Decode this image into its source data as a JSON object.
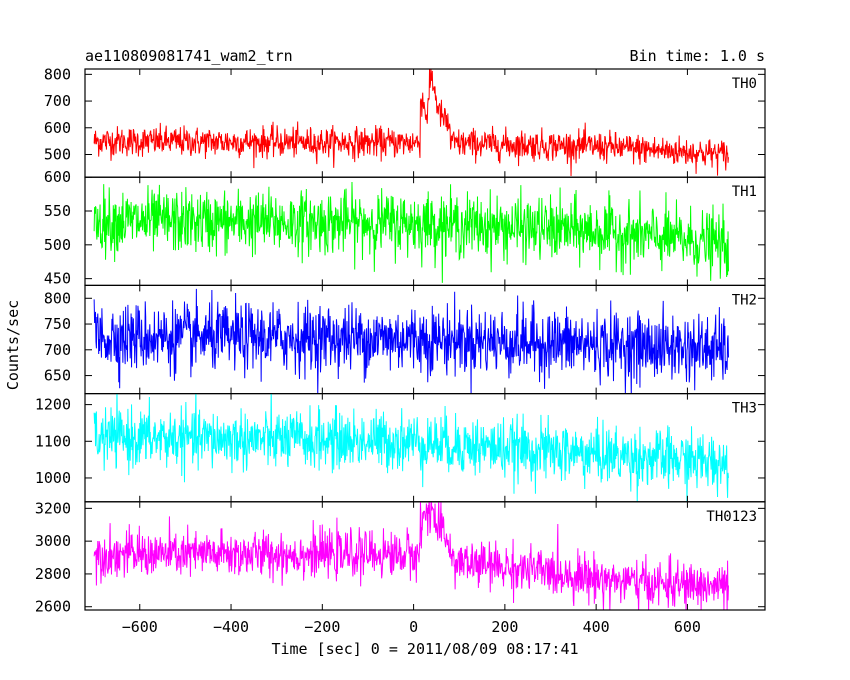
{
  "chart_data": {
    "type": "line",
    "title": "ae110809081741_wam2_trn",
    "subtitle": "Bin time: 1.0 s",
    "xlabel": "Time [sec] 0 = 2011/08/09 08:17:41",
    "ylabel": "Counts/sec",
    "xlim": [
      -720,
      770
    ],
    "x_ticks": [
      -600,
      -400,
      -200,
      0,
      200,
      400,
      600
    ],
    "x_tick_labels": [
      "−600",
      "−400",
      "−200",
      "0",
      "200",
      "400",
      "600"
    ],
    "x_range": [
      -700,
      690
    ],
    "bin_time_s": 1.0,
    "grid": false,
    "panels": [
      {
        "name": "TH0",
        "color": "#ff0000",
        "ylim": [
          415,
          820
        ],
        "y_ticks": [
          500,
          600,
          700,
          800
        ],
        "y_tick_labels": [
          "500",
          "600",
          "700",
          "800"
        ],
        "trend": [
          [
            -700,
            550
          ],
          [
            -200,
            545
          ],
          [
            0,
            545
          ],
          [
            400,
            530
          ],
          [
            690,
            500
          ]
        ],
        "noise_sd": 28,
        "burst": [
          [
            20,
            700
          ],
          [
            30,
            640
          ],
          [
            38,
            800
          ],
          [
            45,
            750
          ],
          [
            55,
            660
          ],
          [
            80,
            600
          ]
        ]
      },
      {
        "name": "TH1",
        "color": "#00ff00",
        "ylim": [
          440,
          600
        ],
        "y_ticks": [
          450,
          500,
          550,
          600
        ],
        "y_tick_labels": [
          "450",
          "500",
          "550",
          "600"
        ],
        "trend": [
          [
            -700,
            535
          ],
          [
            0,
            532
          ],
          [
            400,
            520
          ],
          [
            690,
            500
          ]
        ],
        "noise_sd": 23,
        "burst": []
      },
      {
        "name": "TH2",
        "color": "#0000ff",
        "ylim": [
          615,
          825
        ],
        "y_ticks": [
          650,
          700,
          750,
          800
        ],
        "y_tick_labels": [
          "650",
          "700",
          "750",
          "800"
        ],
        "trend": [
          [
            -700,
            725
          ],
          [
            0,
            722
          ],
          [
            400,
            710
          ],
          [
            690,
            700
          ]
        ],
        "noise_sd": 33,
        "burst": []
      },
      {
        "name": "TH3",
        "color": "#00ffff",
        "ylim": [
          935,
          1230
        ],
        "y_ticks": [
          1000,
          1100,
          1200
        ],
        "y_tick_labels": [
          "1000",
          "1100",
          "1200"
        ],
        "trend": [
          [
            -700,
            1110
          ],
          [
            0,
            1100
          ],
          [
            200,
            1080
          ],
          [
            690,
            1040
          ]
        ],
        "noise_sd": 40,
        "burst": []
      },
      {
        "name": "TH0123",
        "color": "#ff00ff",
        "ylim": [
          2580,
          3240
        ],
        "y_ticks": [
          2600,
          2800,
          3000,
          3200
        ],
        "y_tick_labels": [
          "2600",
          "2800",
          "3000",
          "3200"
        ],
        "trend": [
          [
            -700,
            2920
          ],
          [
            -100,
            2920
          ],
          [
            0,
            2920
          ],
          [
            100,
            2870
          ],
          [
            300,
            2810
          ],
          [
            500,
            2740
          ],
          [
            690,
            2720
          ]
        ],
        "noise_sd": 70,
        "burst": [
          [
            20,
            3120
          ],
          [
            38,
            3230
          ],
          [
            50,
            3080
          ],
          [
            80,
            3000
          ]
        ]
      }
    ]
  }
}
